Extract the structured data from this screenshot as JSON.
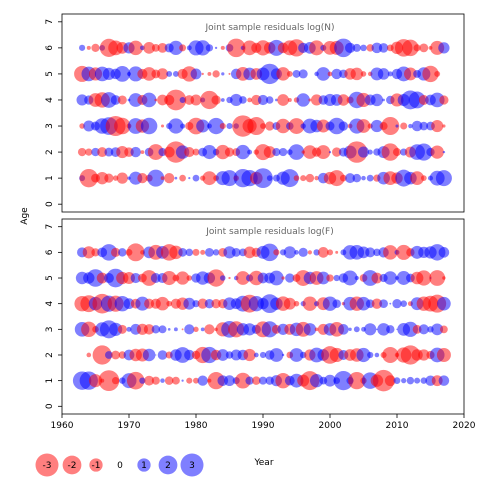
{
  "chart_data": {
    "type": "scatter",
    "xlabel": "Year",
    "ylabel": "Age",
    "xlim": [
      1960,
      2020
    ],
    "ylim": [
      -0.3,
      7.3
    ],
    "x_ticks": [
      1960,
      1970,
      1980,
      1990,
      2000,
      2010,
      2020
    ],
    "y_ticks": [
      0,
      1,
      2,
      3,
      4,
      5,
      6,
      7
    ],
    "year_range": [
      1963,
      2017
    ],
    "ages": [
      1,
      2,
      3,
      4,
      5,
      6
    ],
    "panels": [
      {
        "title": "Joint sample residuals log(N)",
        "seed": 1234,
        "residuals_note": "circle area proportional to |residual|; red negative, blue positive"
      },
      {
        "title": "Joint sample residuals log(F)",
        "seed": 9876,
        "residuals_note": "circle area proportional to |residual|; red negative, blue positive"
      }
    ],
    "legend": {
      "values": [
        -3,
        -2,
        -1,
        0,
        1,
        2,
        3
      ],
      "labels": [
        "-3",
        "-2",
        "-1",
        "0",
        "1",
        "2",
        "3"
      ]
    },
    "colors": {
      "negative": "#ff0000",
      "positive": "#0000ff",
      "fill_opacity": 0.5
    }
  }
}
